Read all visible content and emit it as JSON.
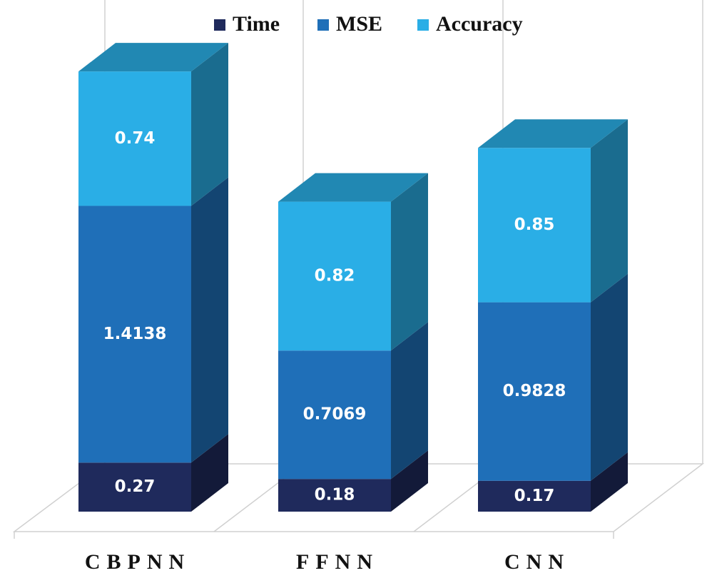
{
  "chart_data": {
    "type": "bar3d_stacked",
    "categories": [
      "CBPNN",
      "FFNN",
      "CNN"
    ],
    "series": [
      {
        "name": "Time",
        "color": "#1f2a5c",
        "values": [
          0.27,
          0.18,
          0.17
        ]
      },
      {
        "name": "MSE",
        "color": "#1f6fb8",
        "values": [
          1.4138,
          0.7069,
          0.9828
        ]
      },
      {
        "name": "Accuracy",
        "color": "#2aaee6",
        "values": [
          0.74,
          0.82,
          0.85
        ]
      }
    ],
    "legend": "top"
  }
}
